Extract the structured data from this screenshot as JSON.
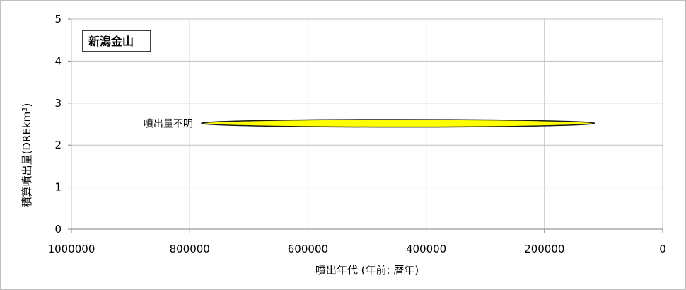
{
  "chart_data": {
    "type": "scatter",
    "title": "新潟金山",
    "xlabel": "噴出年代 (年前: 暦年)",
    "ylabel": "積算噴出量(DREkm",
    "ylabel_sup": "3",
    "ylabel_close": ")",
    "xlim": [
      1000000,
      0
    ],
    "ylim": [
      0,
      5
    ],
    "x_ticks": [
      1000000,
      800000,
      600000,
      400000,
      200000,
      0
    ],
    "x_tick_labels": [
      "1000000",
      "800000",
      "600000",
      "400000",
      "200000",
      "0"
    ],
    "y_ticks": [
      0,
      1,
      2,
      3,
      4,
      5
    ],
    "y_tick_labels": [
      "0",
      "1",
      "2",
      "3",
      "4",
      "5"
    ],
    "grid": true,
    "range_marker": {
      "x_start": 780000,
      "x_end": 115000,
      "y_center": 2.52,
      "y_half_height": 0.09,
      "fill": "#ffff00",
      "stroke": "#1a1a1a"
    },
    "annotation": {
      "text": "噴出量不明",
      "x": 780000,
      "y": 2.52
    }
  }
}
